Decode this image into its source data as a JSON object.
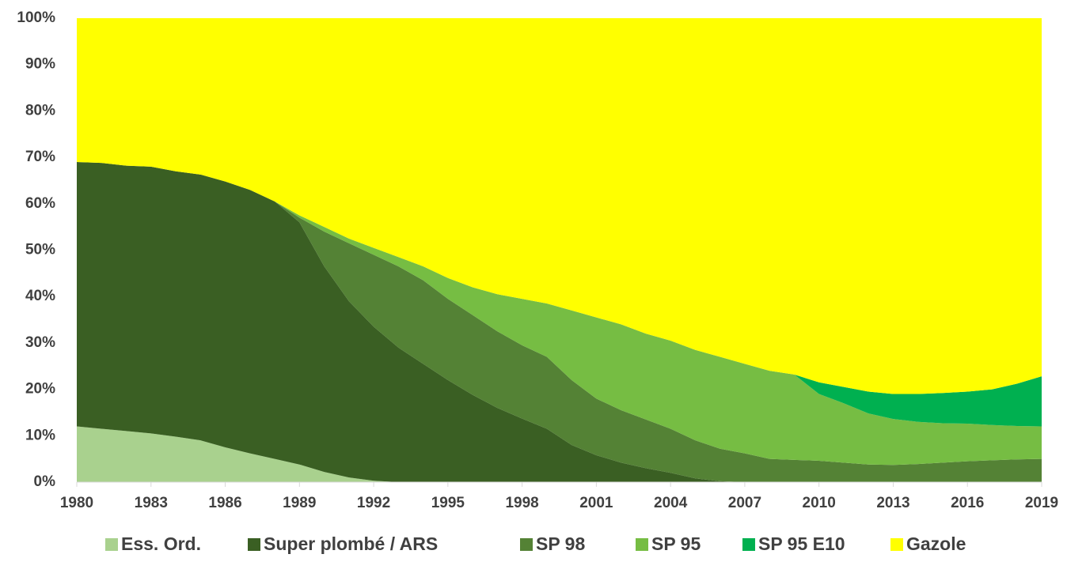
{
  "chart_data": {
    "type": "stacked_area",
    "x": [
      1980,
      1981,
      1982,
      1983,
      1984,
      1985,
      1986,
      1987,
      1988,
      1989,
      1990,
      1991,
      1992,
      1993,
      1994,
      1995,
      1996,
      1997,
      1998,
      1999,
      2000,
      2001,
      2002,
      2003,
      2004,
      2005,
      2006,
      2007,
      2008,
      2009,
      2010,
      2011,
      2012,
      2013,
      2014,
      2015,
      2016,
      2017,
      2018,
      2019
    ],
    "xlim": [
      1980,
      2019
    ],
    "xticks": [
      1980,
      1983,
      1986,
      1989,
      1992,
      1995,
      1998,
      2001,
      2004,
      2007,
      2010,
      2013,
      2016,
      2019
    ],
    "ylim": [
      0,
      100
    ],
    "yticks": [
      {
        "value": 0,
        "label": "0%"
      },
      {
        "value": 10,
        "label": "10%"
      },
      {
        "value": 20,
        "label": "20%"
      },
      {
        "value": 30,
        "label": "30%"
      },
      {
        "value": 40,
        "label": "40%"
      },
      {
        "value": 50,
        "label": "50%"
      },
      {
        "value": 60,
        "label": "60%"
      },
      {
        "value": 70,
        "label": "70%"
      },
      {
        "value": 80,
        "label": "80%"
      },
      {
        "value": 90,
        "label": "90%"
      },
      {
        "value": 100,
        "label": "100%"
      }
    ],
    "legend": "bottom",
    "series": [
      {
        "name": "Ess. Ord.",
        "color": "#a9d18e",
        "values": [
          12,
          11.5,
          11,
          10.5,
          9.8,
          9,
          7.5,
          6.2,
          5,
          3.8,
          2.2,
          1,
          0.3,
          0,
          0,
          0,
          0,
          0,
          0,
          0,
          0,
          0,
          0,
          0,
          0,
          0,
          0,
          0,
          0,
          0,
          0,
          0,
          0,
          0,
          0,
          0,
          0,
          0,
          0,
          0
        ]
      },
      {
        "name": "Super plombé / ARS",
        "color": "#3a5f23",
        "values": [
          57,
          57.3,
          57.2,
          57.5,
          57.2,
          57.3,
          57.3,
          56.8,
          55.5,
          52.2,
          44.3,
          38,
          33.2,
          29,
          25.5,
          22,
          18.8,
          16,
          13.7,
          11.5,
          8,
          5.8,
          4.2,
          3,
          2,
          0.8,
          0.2,
          0,
          0,
          0,
          0,
          0,
          0,
          0,
          0,
          0,
          0,
          0,
          0,
          0
        ]
      },
      {
        "name": "SP 98",
        "color": "#548235",
        "values": [
          0,
          0,
          0,
          0,
          0,
          0,
          0,
          0,
          0,
          1,
          7.5,
          12.5,
          15.5,
          17.5,
          18,
          17.5,
          17.2,
          16.5,
          15.8,
          15.5,
          14,
          12.2,
          11.3,
          10.5,
          9.5,
          8.2,
          7,
          6.2,
          5,
          4.8,
          4.6,
          4.2,
          3.8,
          3.7,
          3.9,
          4.2,
          4.5,
          4.7,
          4.9,
          5
        ]
      },
      {
        "name": "SP 95",
        "color": "#76bd43",
        "values": [
          0,
          0,
          0,
          0,
          0,
          0,
          0,
          0,
          0,
          0.5,
          1,
          1,
          1.5,
          2,
          3,
          4.5,
          6,
          8,
          10,
          11.5,
          15,
          17.5,
          18.5,
          18.5,
          19,
          19.5,
          19.8,
          19.3,
          19,
          18.4,
          14.4,
          12.8,
          11,
          9.9,
          9.1,
          8.5,
          8.1,
          7.6,
          7.2,
          7
        ]
      },
      {
        "name": "SP 95 E10",
        "color": "#00b050",
        "values": [
          0,
          0,
          0,
          0,
          0,
          0,
          0,
          0,
          0,
          0,
          0,
          0,
          0,
          0,
          0,
          0,
          0,
          0,
          0,
          0,
          0,
          0,
          0,
          0,
          0,
          0,
          0,
          0,
          0,
          0,
          2.5,
          3.5,
          4.7,
          5.4,
          6,
          6.5,
          6.9,
          7.7,
          9.1,
          10.8
        ]
      },
      {
        "name": "Gazole",
        "color": "#ffff00",
        "values": [
          31,
          31.2,
          31.8,
          32,
          33,
          33.7,
          35.2,
          37,
          39.5,
          42.5,
          45,
          47.5,
          49.5,
          51.5,
          53.5,
          56,
          58,
          59.5,
          60.5,
          61.5,
          63,
          64.5,
          66,
          68,
          69.5,
          71.5,
          73,
          74.5,
          76,
          76.8,
          78.5,
          79.5,
          80.5,
          81,
          81,
          80.8,
          80.5,
          80,
          78.8,
          77.2
        ]
      }
    ]
  }
}
